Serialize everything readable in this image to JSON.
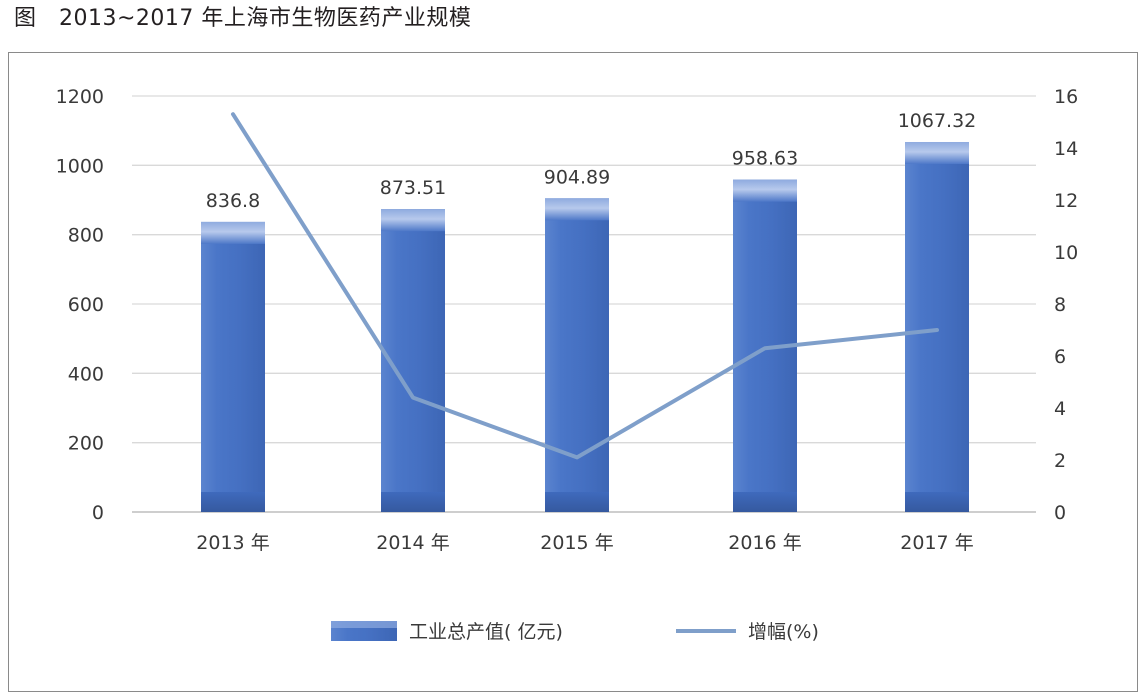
{
  "figure_title": "图   2013~2017 年上海市生物医药产业规模",
  "chart_data": {
    "type": "bar",
    "categories": [
      "2013 年",
      "2014 年",
      "2015 年",
      "2016 年",
      "2017 年"
    ],
    "series": [
      {
        "name": "工业总产值( 亿元)",
        "type": "bar",
        "axis": "left",
        "values": [
          836.8,
          873.51,
          904.89,
          958.63,
          1067.32
        ],
        "data_labels": [
          "836.8",
          "873.51",
          "904.89",
          "958.63",
          "1067.32"
        ],
        "color": "#4472c4"
      },
      {
        "name": "增幅(%)",
        "type": "line",
        "axis": "right",
        "values": [
          15.3,
          4.4,
          2.1,
          6.3,
          7.0
        ],
        "color": "#7f9fca"
      }
    ],
    "y_left": {
      "ylim": [
        0,
        1200
      ],
      "ticks": [
        "0",
        "200",
        "400",
        "600",
        "800",
        "1000",
        "1200"
      ]
    },
    "y_right": {
      "ylim": [
        0,
        16
      ],
      "ticks": [
        "0",
        "2",
        "4",
        "6",
        "8",
        "10",
        "12",
        "14",
        "16"
      ]
    },
    "grid": true,
    "legend_position": "bottom"
  }
}
